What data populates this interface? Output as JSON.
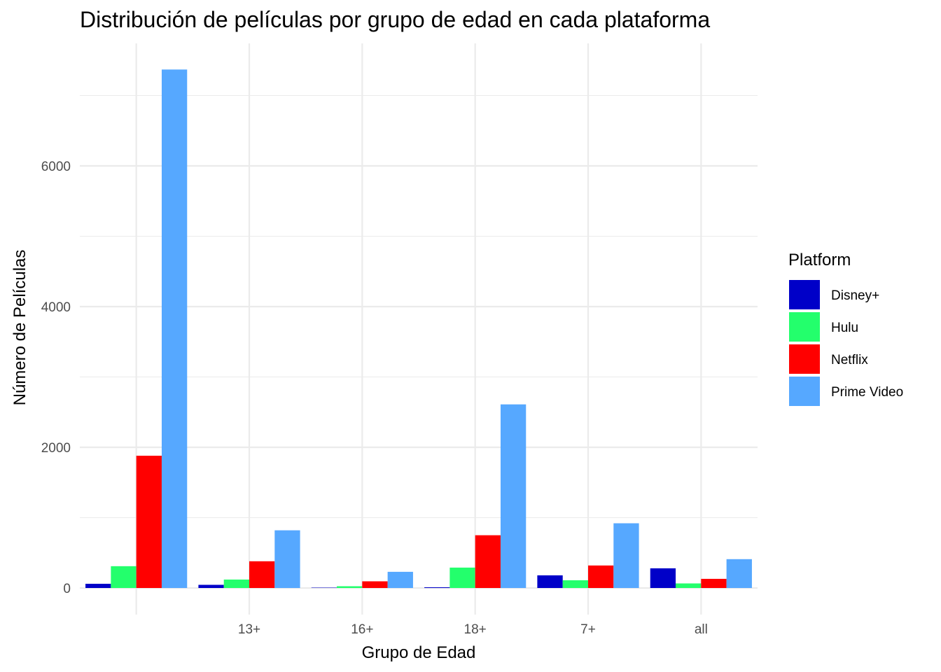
{
  "chart_data": {
    "type": "bar",
    "title": "Distribución de películas por grupo de edad en cada plataforma",
    "xlabel": "Grupo de Edad",
    "ylabel": "Número de Películas",
    "categories": [
      "",
      "13+",
      "16+",
      "18+",
      "7+",
      "all"
    ],
    "ylim": [
      -300,
      7700
    ],
    "yticks": [
      0,
      2000,
      4000,
      6000
    ],
    "grid": true,
    "legend_title": "Platform",
    "legend_position": "right",
    "series": [
      {
        "name": "Disney+",
        "color": "#0000C8",
        "values": [
          60,
          45,
          5,
          10,
          180,
          280
        ]
      },
      {
        "name": "Hulu",
        "color": "#23FF6C",
        "values": [
          310,
          120,
          25,
          290,
          110,
          65
        ]
      },
      {
        "name": "Netflix",
        "color": "#FF0000",
        "values": [
          1880,
          380,
          95,
          750,
          320,
          130
        ]
      },
      {
        "name": "Prime Video",
        "color": "#56A8FF",
        "values": [
          7370,
          820,
          230,
          2610,
          920,
          410
        ]
      }
    ]
  }
}
